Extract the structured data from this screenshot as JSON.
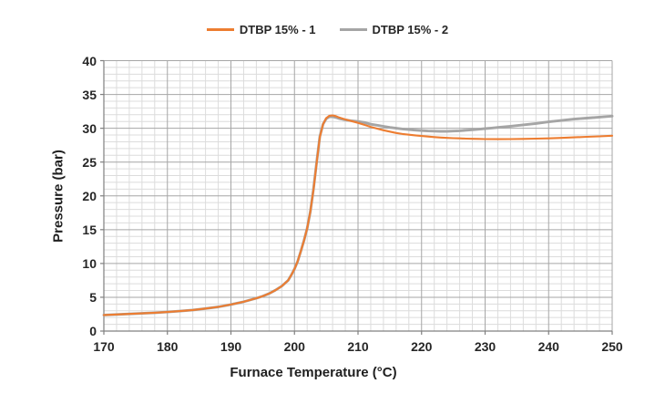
{
  "chart_data": {
    "type": "line",
    "title": "",
    "xlabel": "Furnace Temperature (°C)",
    "ylabel": "Pressure (bar)",
    "xlim": [
      170,
      250
    ],
    "ylim": [
      0,
      40
    ],
    "x_ticks": [
      "170",
      "180",
      "190",
      "200",
      "210",
      "220",
      "230",
      "240",
      "250"
    ],
    "y_ticks": [
      "0",
      "5",
      "10",
      "15",
      "20",
      "25",
      "30",
      "35",
      "40"
    ],
    "x_major_step": 10,
    "x_minor_step": 2,
    "y_major_step": 5,
    "y_minor_step": 1,
    "grid": "major+minor",
    "legend_position": "top-center",
    "colors": {
      "series1": "#ED7D31",
      "series2": "#A5A5A5",
      "major_grid": "#A6A6A6",
      "minor_grid": "#DCDCDC",
      "axis_line": "#808080",
      "text": "#262626"
    },
    "series": [
      {
        "name": "DTBP 15% - 1",
        "color": "#ED7D31",
        "points": [
          [
            170,
            2.38
          ],
          [
            172,
            2.46
          ],
          [
            174,
            2.54
          ],
          [
            176,
            2.62
          ],
          [
            178,
            2.71
          ],
          [
            180,
            2.82
          ],
          [
            182,
            2.95
          ],
          [
            184,
            3.12
          ],
          [
            186,
            3.33
          ],
          [
            188,
            3.58
          ],
          [
            190,
            3.92
          ],
          [
            192,
            4.33
          ],
          [
            194,
            4.85
          ],
          [
            195,
            5.17
          ],
          [
            196,
            5.55
          ],
          [
            197,
            6.05
          ],
          [
            198,
            6.65
          ],
          [
            199,
            7.5
          ],
          [
            199.5,
            8.3
          ],
          [
            200,
            9.2
          ],
          [
            200.5,
            10.3
          ],
          [
            201,
            11.8
          ],
          [
            201.5,
            13.4
          ],
          [
            202,
            15.2
          ],
          [
            202.5,
            17.7
          ],
          [
            203,
            21.0
          ],
          [
            203.5,
            25.0
          ],
          [
            204,
            28.7
          ],
          [
            204.5,
            30.6
          ],
          [
            205,
            31.5
          ],
          [
            205.5,
            31.85
          ],
          [
            206,
            31.9
          ],
          [
            206.5,
            31.8
          ],
          [
            207,
            31.6
          ],
          [
            208,
            31.3
          ],
          [
            209,
            31.05
          ],
          [
            210,
            30.8
          ],
          [
            211,
            30.5
          ],
          [
            212,
            30.2
          ],
          [
            213,
            29.95
          ],
          [
            214,
            29.7
          ],
          [
            215,
            29.5
          ],
          [
            216,
            29.3
          ],
          [
            217,
            29.15
          ],
          [
            218,
            29.05
          ],
          [
            219,
            28.95
          ],
          [
            220,
            28.85
          ],
          [
            221,
            28.77
          ],
          [
            222,
            28.7
          ],
          [
            223,
            28.63
          ],
          [
            224,
            28.58
          ],
          [
            225,
            28.53
          ],
          [
            226,
            28.5
          ],
          [
            227,
            28.47
          ],
          [
            228,
            28.44
          ],
          [
            229,
            28.42
          ],
          [
            230,
            28.4
          ],
          [
            232,
            28.38
          ],
          [
            234,
            28.4
          ],
          [
            236,
            28.43
          ],
          [
            238,
            28.47
          ],
          [
            240,
            28.5
          ],
          [
            242,
            28.57
          ],
          [
            244,
            28.65
          ],
          [
            246,
            28.73
          ],
          [
            248,
            28.8
          ],
          [
            250,
            28.9
          ]
        ]
      },
      {
        "name": "DTBP 15% - 2",
        "color": "#A5A5A5",
        "points": [
          [
            170,
            2.38
          ],
          [
            172,
            2.46
          ],
          [
            174,
            2.54
          ],
          [
            176,
            2.62
          ],
          [
            178,
            2.71
          ],
          [
            180,
            2.82
          ],
          [
            182,
            2.95
          ],
          [
            184,
            3.12
          ],
          [
            186,
            3.33
          ],
          [
            188,
            3.58
          ],
          [
            190,
            3.92
          ],
          [
            192,
            4.33
          ],
          [
            194,
            4.85
          ],
          [
            195,
            5.17
          ],
          [
            196,
            5.55
          ],
          [
            197,
            6.05
          ],
          [
            198,
            6.65
          ],
          [
            199,
            7.5
          ],
          [
            199.5,
            8.3
          ],
          [
            200,
            9.2
          ],
          [
            200.5,
            10.3
          ],
          [
            201,
            11.8
          ],
          [
            201.5,
            13.4
          ],
          [
            202,
            15.2
          ],
          [
            202.5,
            17.7
          ],
          [
            203,
            21.1
          ],
          [
            203.5,
            25.1
          ],
          [
            204,
            28.8
          ],
          [
            204.5,
            30.6
          ],
          [
            205,
            31.4
          ],
          [
            205.5,
            31.7
          ],
          [
            206,
            31.7
          ],
          [
            206.5,
            31.6
          ],
          [
            207,
            31.45
          ],
          [
            208,
            31.25
          ],
          [
            209,
            31.1
          ],
          [
            210,
            31.0
          ],
          [
            211,
            30.85
          ],
          [
            212,
            30.6
          ],
          [
            213,
            30.45
          ],
          [
            214,
            30.28
          ],
          [
            215,
            30.12
          ],
          [
            216,
            30.0
          ],
          [
            217,
            29.9
          ],
          [
            218,
            29.8
          ],
          [
            219,
            29.72
          ],
          [
            220,
            29.65
          ],
          [
            221,
            29.6
          ],
          [
            222,
            29.57
          ],
          [
            223,
            29.55
          ],
          [
            224,
            29.55
          ],
          [
            225,
            29.58
          ],
          [
            226,
            29.63
          ],
          [
            227,
            29.7
          ],
          [
            228,
            29.78
          ],
          [
            229,
            29.86
          ],
          [
            230,
            29.95
          ],
          [
            231,
            30.03
          ],
          [
            232,
            30.12
          ],
          [
            233,
            30.2
          ],
          [
            234,
            30.3
          ],
          [
            235,
            30.4
          ],
          [
            236,
            30.5
          ],
          [
            238,
            30.7
          ],
          [
            240,
            30.95
          ],
          [
            242,
            31.15
          ],
          [
            244,
            31.35
          ],
          [
            246,
            31.5
          ],
          [
            248,
            31.65
          ],
          [
            250,
            31.8
          ]
        ]
      }
    ]
  }
}
